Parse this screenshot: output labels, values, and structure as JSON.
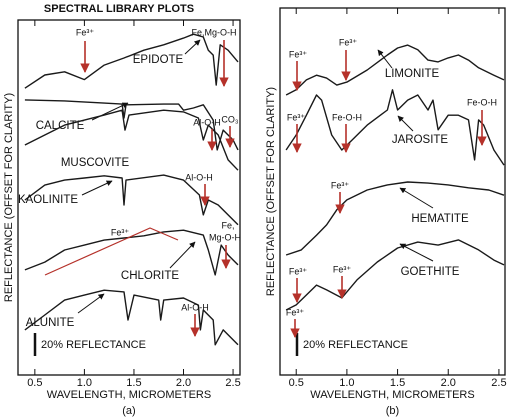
{
  "chart_data": [
    {
      "type": "line",
      "title": "SPECTRAL LIBRARY PLOTS",
      "xlabel": "WAVELENGTH, MICROMETERS",
      "ylabel": "REFLECTANCE (OFFSET FOR CLARITY)",
      "caption": "(a)",
      "scale_label": "20% REFLECTANCE",
      "xlim": [
        0.33,
        2.57
      ],
      "xticks": [
        0.5,
        {
          "value": 1,
          "label": "1.0"
        },
        1.5,
        {
          "value": 2,
          "label": "2.0"
        },
        2.5
      ],
      "ylim": [
        0,
        100
      ],
      "annotation_color": "#b5312a",
      "series": [
        {
          "name": "EPIDOTE",
          "color": "#1a1a1a",
          "x": [
            0.4,
            0.6,
            0.8,
            1.0,
            1.2,
            1.4,
            1.6,
            1.8,
            2.0,
            2.1,
            2.2,
            2.25,
            2.3,
            2.33,
            2.37,
            2.45,
            2.55
          ],
          "values": [
            80.8,
            84.5,
            85.4,
            83.2,
            87.3,
            89.3,
            91.5,
            93,
            94.9,
            96,
            95.2,
            91.5,
            90.1,
            81.7,
            93,
            91.5,
            88.2
          ]
        },
        {
          "name": "CALCITE",
          "color": "#1a1a1a",
          "x": [
            0.4,
            0.8,
            1.2,
            1.38,
            1.4,
            1.42,
            1.8,
            1.95,
            2.0,
            2.1,
            2.2,
            2.3,
            2.34,
            2.4,
            2.5,
            2.55
          ],
          "values": [
            77.5,
            77.2,
            76.6,
            76.3,
            72.4,
            76.1,
            76.3,
            76.3,
            74.6,
            75.2,
            76.1,
            71.8,
            63.4,
            69,
            66.2,
            63.4
          ]
        },
        {
          "name": "MUSCOVITE",
          "color": "#1a1a1a",
          "x": [
            0.4,
            0.6,
            0.8,
            1.0,
            1.2,
            1.38,
            1.41,
            1.45,
            1.8,
            2.0,
            2.15,
            2.2,
            2.25,
            2.35,
            2.45,
            2.55
          ],
          "values": [
            64.8,
            67.6,
            70.4,
            71.8,
            73.2,
            74.6,
            69,
            73.2,
            74.6,
            74.1,
            72.4,
            66.2,
            70.4,
            67.6,
            60.6,
            57.7
          ]
        },
        {
          "name": "KAOLINITE",
          "color": "#1a1a1a",
          "x": [
            0.4,
            0.6,
            0.8,
            1.0,
            1.2,
            1.38,
            1.4,
            1.42,
            1.8,
            2.0,
            2.16,
            2.2,
            2.25,
            2.35,
            2.45,
            2.55
          ],
          "values": [
            49.3,
            53.5,
            54.9,
            55.5,
            56.1,
            55.5,
            47.9,
            54.9,
            56.3,
            54.9,
            50.7,
            45.1,
            49.3,
            47.9,
            45.1,
            42.3
          ]
        },
        {
          "name": "CHLORITE",
          "color": "#1a1a1a",
          "x": [
            0.4,
            0.6,
            0.8,
            1.0,
            1.2,
            1.4,
            1.6,
            1.8,
            2.0,
            2.2,
            2.25,
            2.32,
            2.38,
            2.45,
            2.55
          ],
          "values": [
            29.6,
            31.8,
            35.2,
            36.6,
            38,
            38.6,
            39.2,
            40.3,
            40.8,
            39.4,
            35.2,
            28.2,
            36.6,
            33.8,
            31
          ]
        },
        {
          "name": "ALUNITE",
          "color": "#1a1a1a",
          "x": [
            0.4,
            0.6,
            0.8,
            1.0,
            1.2,
            1.4,
            1.44,
            1.5,
            1.75,
            1.77,
            1.8,
            2.0,
            2.15,
            2.17,
            2.2,
            2.3,
            2.32,
            2.4,
            2.55
          ],
          "values": [
            12.7,
            16.9,
            21.1,
            22.5,
            23.9,
            23.4,
            15.5,
            22.5,
            21.1,
            15.5,
            21.1,
            21.7,
            19.7,
            12.7,
            18.3,
            15.5,
            8.5,
            12.7,
            8.5
          ]
        }
      ],
      "annotations": [
        {
          "text": "Fe³⁺"
        },
        {
          "text": "Fe,Mg-O-H"
        },
        {
          "text": "CO₃"
        },
        {
          "text": "Al-O-H"
        },
        {
          "text": "Al-O-H"
        },
        {
          "text": "Fe³⁺"
        },
        {
          "text": "Fe,"
        },
        {
          "text": "Mg-O-H"
        },
        {
          "text": "Al-O-H"
        }
      ]
    },
    {
      "type": "line",
      "xlabel": "WAVELENGTH, MICROMETERS",
      "ylabel": "REFLECTANCE (OFFSET FOR CLARITY)",
      "caption": "(b)",
      "scale_label": "20% REFLECTANCE",
      "xlim": [
        0.34,
        2.56
      ],
      "xticks": [
        0.5,
        {
          "value": 1,
          "label": "1.0"
        },
        1.5,
        {
          "value": 2,
          "label": "2.0"
        },
        2.5
      ],
      "ylim": [
        0,
        100
      ],
      "annotation_color": "#b5312a",
      "series": [
        {
          "name": "LIMONITE",
          "color": "#1a1a1a",
          "x": [
            0.4,
            0.5,
            0.6,
            0.7,
            0.8,
            0.9,
            1.0,
            1.2,
            1.4,
            1.5,
            1.6,
            1.7,
            1.8,
            1.9,
            2.0,
            2.1,
            2.2,
            2.3,
            2.45,
            2.55
          ],
          "values": [
            76.3,
            77.7,
            80.4,
            81.7,
            80.9,
            79,
            79.8,
            83.1,
            87.2,
            89.1,
            89.9,
            88.6,
            85.8,
            85.3,
            86.4,
            87.2,
            85.8,
            83.7,
            81.7,
            80.4
          ]
        },
        {
          "name": "JAROSITE",
          "color": "#1a1a1a",
          "x": [
            0.4,
            0.5,
            0.6,
            0.7,
            0.75,
            0.85,
            0.95,
            1.05,
            1.2,
            1.4,
            1.45,
            1.5,
            1.6,
            1.7,
            1.8,
            1.85,
            1.9,
            2.0,
            2.1,
            2.2,
            2.26,
            2.3,
            2.35,
            2.45,
            2.55
          ],
          "values": [
            61.3,
            65.4,
            70.8,
            76.3,
            74.9,
            65.4,
            61.3,
            64,
            68.1,
            72.2,
            77.7,
            72.2,
            74.9,
            76.3,
            72.2,
            74.9,
            66.8,
            70.8,
            70.8,
            69.5,
            58.6,
            69.5,
            68.1,
            61.3,
            57.2
          ]
        },
        {
          "name": "HEMATITE",
          "color": "#1a1a1a",
          "x": [
            0.4,
            0.55,
            0.7,
            0.8,
            0.9,
            1.0,
            1.2,
            1.4,
            1.6,
            1.8,
            2.0,
            2.2,
            2.4,
            2.55
          ],
          "values": [
            32.7,
            34.1,
            38.1,
            40.9,
            45,
            47.7,
            50.4,
            51.8,
            52.6,
            52.3,
            51.8,
            51,
            50.4,
            49
          ]
        },
        {
          "name": "GOETHITE",
          "color": "#1a1a1a",
          "x": [
            0.4,
            0.5,
            0.6,
            0.7,
            0.8,
            0.95,
            1.1,
            1.3,
            1.5,
            1.7,
            1.9,
            2.1,
            2.3,
            2.45,
            2.55
          ],
          "values": [
            17.7,
            19.1,
            21.8,
            24.5,
            23.2,
            21,
            25.9,
            30.8,
            34.6,
            36.2,
            35.4,
            36.8,
            34.1,
            31.3,
            30
          ]
        }
      ],
      "annotations": [
        {
          "text": "Fe³⁺"
        },
        {
          "text": "Fe³⁺"
        },
        {
          "text": "Fe³⁺"
        },
        {
          "text": "Fe-O-H"
        },
        {
          "text": "Fe-O-H"
        },
        {
          "text": "Fe³⁺"
        },
        {
          "text": "Fe³⁺"
        },
        {
          "text": "Fe³⁺"
        },
        {
          "text": "Fe³⁺"
        }
      ]
    }
  ]
}
